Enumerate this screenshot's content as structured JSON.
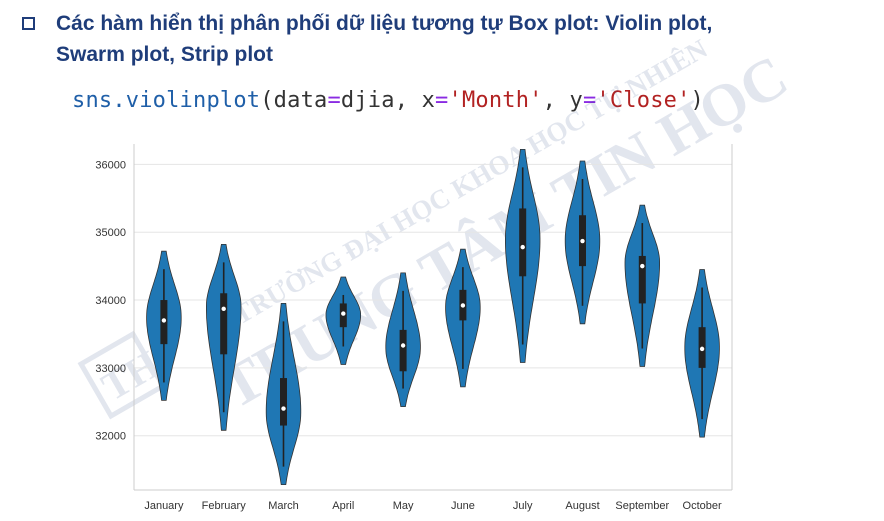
{
  "heading": {
    "line1": "Các hàm hiển thị phân phối dữ liệu tương tự Box plot: Violin plot,",
    "line2": "Swarm plot, Strip plot"
  },
  "code": {
    "fn": "sns.violinplot",
    "open": "(data",
    "eq1": "=",
    "arg1": "djia, x",
    "eq2": "=",
    "str1": "'Month'",
    "sep": ", y",
    "eq3": "=",
    "str2": "'Close'",
    "close": ")"
  },
  "watermark": {
    "line1": "TRƯỜNG ĐẠI HỌC KHOA HỌC TỰ NHIÊN",
    "line2": "TRUNG TÂM TIN HỌC",
    "logo": "TH"
  },
  "colors": {
    "violin": "#1f77b4",
    "heading": "#1f3d7a",
    "grid": "#e5e5e5"
  },
  "chart_data": {
    "type": "violin",
    "categories": [
      "January",
      "February",
      "March",
      "April",
      "May",
      "June",
      "July",
      "August",
      "September",
      "October"
    ],
    "ylim": [
      31200,
      36300
    ],
    "yticks": [
      32000,
      33000,
      34000,
      35000,
      36000
    ],
    "grid": true,
    "series": [
      {
        "min": 32520,
        "max": 34720,
        "q1": 33350,
        "median": 33700,
        "q3": 34000,
        "peak": 33750
      },
      {
        "min": 32080,
        "max": 34820,
        "q1": 33200,
        "median": 33870,
        "q3": 34100,
        "peak": 33900
      },
      {
        "min": 31280,
        "max": 33950,
        "q1": 32150,
        "median": 32400,
        "q3": 32850,
        "peak": 32350
      },
      {
        "min": 33050,
        "max": 34340,
        "q1": 33600,
        "median": 33800,
        "q3": 33950,
        "peak": 33780
      },
      {
        "min": 32430,
        "max": 34400,
        "q1": 32950,
        "median": 33330,
        "q3": 33560,
        "peak": 33300
      },
      {
        "min": 32720,
        "max": 34750,
        "q1": 33700,
        "median": 33920,
        "q3": 34150,
        "peak": 33900
      },
      {
        "min": 33080,
        "max": 36220,
        "q1": 34350,
        "median": 34780,
        "q3": 35350,
        "peak": 34900
      },
      {
        "min": 33650,
        "max": 36050,
        "q1": 34500,
        "median": 34870,
        "q3": 35250,
        "peak": 34870
      },
      {
        "min": 33020,
        "max": 35400,
        "q1": 33950,
        "median": 34500,
        "q3": 34650,
        "peak": 34550
      },
      {
        "min": 31980,
        "max": 34450,
        "q1": 33000,
        "median": 33280,
        "q3": 33600,
        "peak": 33300
      }
    ]
  }
}
